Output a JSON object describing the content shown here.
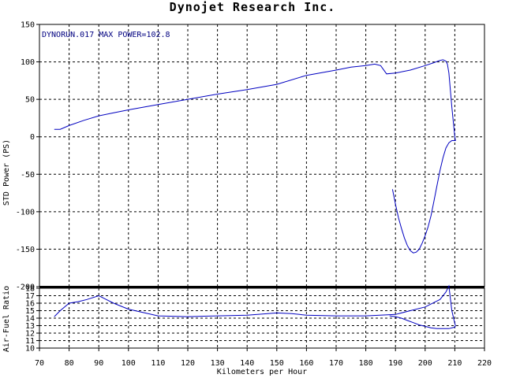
{
  "chart_data": [
    {
      "type": "line",
      "title": "Dynojet Research Inc.",
      "annotation": "DYNORUN.017  MAX POWER=102.8",
      "ylabel": "STD Power (PS)",
      "xlim": [
        70,
        220
      ],
      "ylim": [
        -200,
        150
      ],
      "yticks": [
        150,
        100,
        50,
        0,
        -50,
        -100,
        -150,
        -200
      ],
      "grid": true,
      "line_color": "#0000c0",
      "series": [
        {
          "x": [
            75,
            77,
            80,
            85,
            90,
            95,
            100,
            110,
            120,
            130,
            140,
            150,
            160,
            170,
            175,
            180,
            183,
            185,
            187,
            190,
            195,
            200,
            203,
            205,
            206,
            207,
            207.5,
            208,
            209,
            210,
            210.2,
            210,
            209,
            208,
            207,
            206,
            205,
            204,
            203,
            202,
            201,
            200,
            199,
            198,
            197,
            196,
            195,
            194,
            193,
            192,
            191,
            190,
            189
          ],
          "y": [
            10,
            10,
            15,
            22,
            28,
            32,
            36,
            43,
            50,
            57,
            63,
            70,
            82,
            89,
            93,
            95,
            97,
            95,
            84,
            85,
            89,
            95,
            99,
            102,
            102.8,
            101,
            97,
            85,
            40,
            0,
            -5,
            -5,
            -5,
            -8,
            -15,
            -28,
            -45,
            -65,
            -85,
            -105,
            -120,
            -132,
            -142,
            -150,
            -154,
            -155,
            -152,
            -145,
            -135,
            -122,
            -108,
            -90,
            -70
          ]
        }
      ]
    },
    {
      "type": "line",
      "xlabel": "Kilometers per Hour",
      "ylabel": "Air-Fuel Ratio",
      "xlim": [
        70,
        220
      ],
      "ylim": [
        10,
        18
      ],
      "xticks": [
        70,
        80,
        90,
        100,
        110,
        120,
        130,
        140,
        150,
        160,
        170,
        180,
        190,
        200,
        210,
        220
      ],
      "yticks": [
        18,
        17,
        16,
        15,
        14,
        13,
        12,
        11,
        10
      ],
      "grid": true,
      "line_color": "#0000c0",
      "series": [
        {
          "x": [
            75,
            77,
            80,
            83,
            86,
            90,
            95,
            100,
            110,
            120,
            130,
            140,
            150,
            155,
            160,
            170,
            180,
            190,
            195,
            200,
            205,
            207,
            208,
            209,
            210,
            210.2,
            210,
            208,
            206,
            204,
            202,
            200,
            198,
            196,
            194,
            192,
            190,
            188
          ],
          "y": [
            14.2,
            15,
            16,
            16.2,
            16.5,
            17,
            16,
            15.2,
            14.3,
            14.2,
            14.3,
            14.4,
            14.7,
            14.6,
            14.4,
            14.3,
            14.3,
            14.5,
            15,
            15.5,
            16.5,
            17.5,
            18.3,
            15,
            13.3,
            13,
            12.8,
            12.6,
            12.6,
            12.6,
            12.7,
            12.9,
            13.1,
            13.4,
            13.7,
            14,
            14.2,
            14.3
          ]
        }
      ]
    }
  ]
}
